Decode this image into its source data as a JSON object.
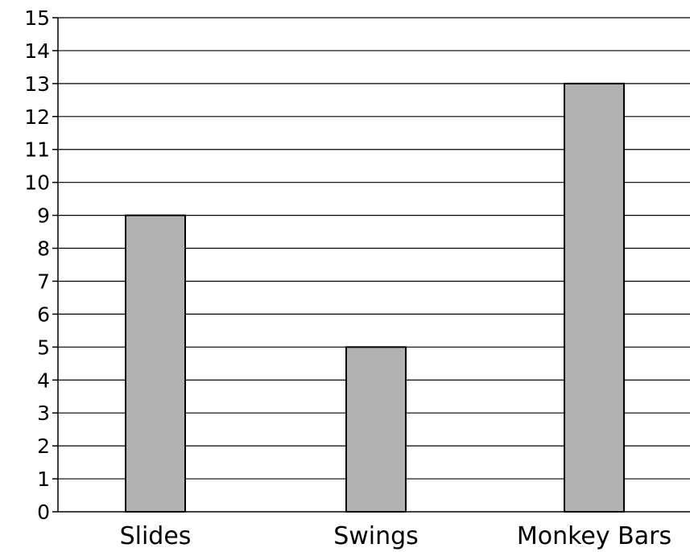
{
  "chart_data": {
    "type": "bar",
    "categories": [
      "Slides",
      "Swings",
      "Monkey Bars"
    ],
    "values": [
      9,
      5,
      13
    ],
    "title": "",
    "xlabel": "",
    "ylabel": "",
    "ylim": [
      0,
      15
    ],
    "yticks": [
      "0",
      "1",
      "2",
      "3",
      "4",
      "5",
      "6",
      "7",
      "8",
      "9",
      "10",
      "11",
      "12",
      "13",
      "14",
      "15"
    ],
    "grid": true,
    "bar_color": "#b2b2b2",
    "bar_edge_color": "#000000",
    "gridline_color": "#000000"
  }
}
